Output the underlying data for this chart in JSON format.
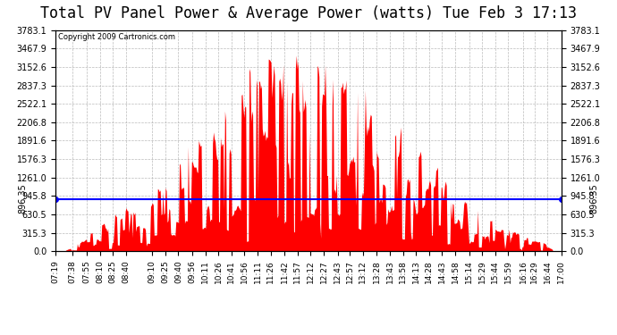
{
  "title": "Total PV Panel Power & Average Power (watts) Tue Feb 3 17:13",
  "copyright": "Copyright 2009 Cartronics.com",
  "avg_value": 896.35,
  "ymax": 3783.1,
  "yticks": [
    0.0,
    315.3,
    630.5,
    945.8,
    1261.0,
    1576.3,
    1891.6,
    2206.8,
    2522.1,
    2837.3,
    3152.6,
    3467.9,
    3783.1
  ],
  "ytick_labels": [
    "0.0",
    "315.3",
    "630.5",
    "945.8",
    "1261.0",
    "1576.3",
    "1891.6",
    "2206.8",
    "2522.1",
    "2837.3",
    "3152.6",
    "3467.9",
    "3783.1"
  ],
  "xtick_labels": [
    "07:19",
    "07:38",
    "07:55",
    "08:10",
    "08:25",
    "08:40",
    "09:10",
    "09:25",
    "09:40",
    "09:56",
    "10:11",
    "10:26",
    "10:41",
    "10:56",
    "11:11",
    "11:26",
    "11:42",
    "11:57",
    "12:12",
    "12:27",
    "12:43",
    "12:57",
    "13:12",
    "13:28",
    "13:43",
    "13:58",
    "14:13",
    "14:28",
    "14:43",
    "14:58",
    "15:14",
    "15:29",
    "15:44",
    "15:59",
    "16:16",
    "16:29",
    "16:44",
    "17:00"
  ],
  "fill_color": "#FF0000",
  "line_color": "#0000FF",
  "bg_color": "#FFFFFF",
  "grid_color": "#AAAAAA",
  "title_fontsize": 12,
  "avg_label": "896.35"
}
